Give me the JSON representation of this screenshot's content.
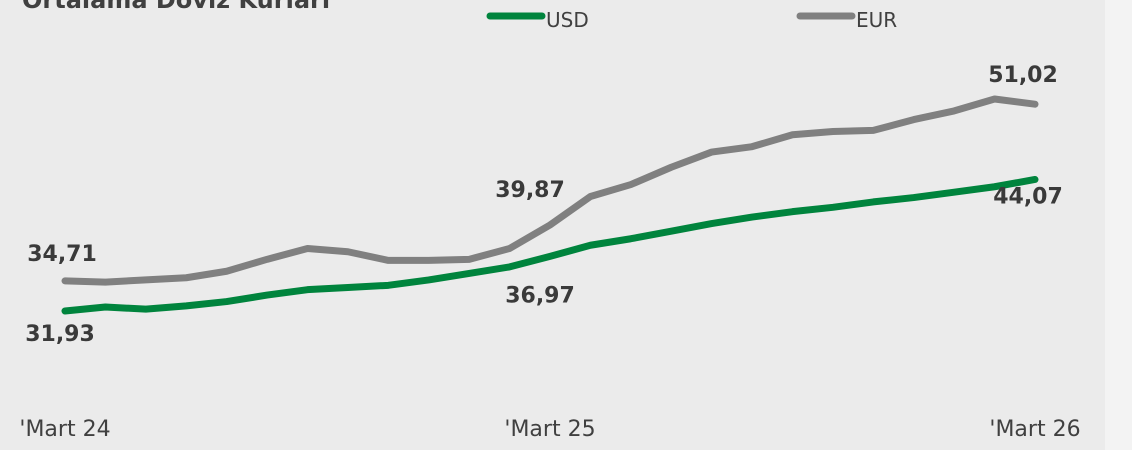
{
  "chart_data": {
    "type": "line",
    "title": "Ortalama Döviz Kurları",
    "categories": [
      "'Mart 24",
      null,
      null,
      null,
      null,
      null,
      null,
      null,
      null,
      null,
      null,
      null,
      "'Mart 25",
      null,
      null,
      null,
      null,
      null,
      null,
      null,
      null,
      null,
      null,
      null,
      "'Mart 26"
    ],
    "series": [
      {
        "name": "USD",
        "color": "#00843d",
        "values": [
          31.93,
          32.3,
          32.1,
          32.4,
          32.8,
          33.4,
          33.9,
          34.1,
          34.3,
          34.8,
          35.4,
          36.0,
          36.97,
          38.0,
          38.6,
          39.3,
          40.0,
          40.6,
          41.1,
          41.5,
          42.0,
          42.4,
          42.9,
          43.4,
          44.07
        ],
        "value_labels": [
          "31,93",
          null,
          null,
          null,
          null,
          null,
          null,
          null,
          null,
          null,
          null,
          null,
          "36,97",
          null,
          null,
          null,
          null,
          null,
          null,
          null,
          null,
          null,
          null,
          null,
          "44,07"
        ]
      },
      {
        "name": "EUR",
        "color": "#808080",
        "values": [
          34.71,
          34.6,
          34.8,
          35.0,
          35.6,
          36.7,
          37.7,
          37.4,
          36.6,
          36.6,
          36.7,
          37.7,
          39.87,
          42.5,
          43.6,
          45.2,
          46.6,
          47.1,
          48.2,
          48.5,
          48.6,
          49.6,
          50.4,
          51.5,
          51.02
        ],
        "value_labels": [
          "34,71",
          null,
          null,
          null,
          null,
          null,
          null,
          null,
          null,
          null,
          null,
          null,
          "39,87",
          null,
          null,
          null,
          null,
          null,
          null,
          null,
          null,
          null,
          null,
          null,
          "51,02"
        ]
      }
    ]
  }
}
